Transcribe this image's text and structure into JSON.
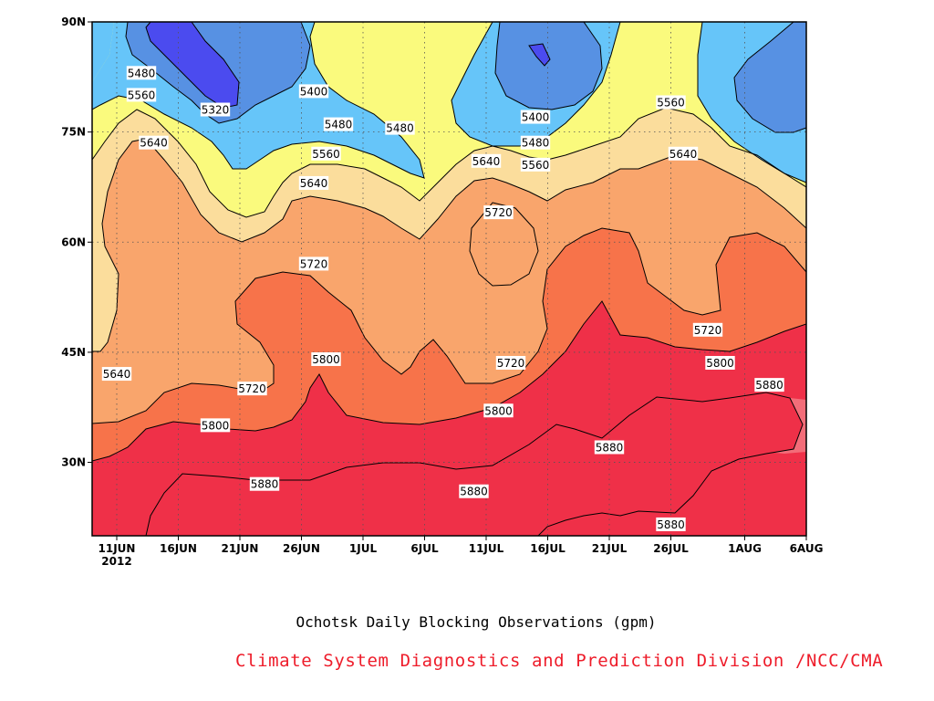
{
  "chart_data": {
    "type": "heatmap",
    "subtype": "filled contour (time-latitude Hovmoller)",
    "title": "",
    "xlabel": "Ochotsk Daily Blocking Observations (gpm)",
    "ylabel": "",
    "credit": "Climate System Diagnostics and Prediction Division /NCC/CMA",
    "x_axis": {
      "ticks": [
        "11JUN",
        "16JUN",
        "21JUN",
        "26JUN",
        "1JUL",
        "6JUL",
        "11JUL",
        "16JUL",
        "21JUL",
        "26JUL",
        "1AUG",
        "6AUG"
      ],
      "tick_values": [
        2,
        7,
        12,
        17,
        22,
        27,
        32,
        37,
        42,
        47,
        53,
        58
      ],
      "year_label": "2012",
      "range": [
        0,
        58
      ]
    },
    "y_axis": {
      "ticks": [
        "30N",
        "45N",
        "60N",
        "75N",
        "90N"
      ],
      "tick_values": [
        30,
        45,
        60,
        75,
        90
      ],
      "range": [
        20,
        90
      ]
    },
    "contour_levels": [
      5320,
      5400,
      5480,
      5560,
      5640,
      5720,
      5800,
      5880
    ],
    "fill_colors": {
      "below_5320": "#4b4bef",
      "5320_5400": "#5791e3",
      "5400_5480": "#66c5f9",
      "5480_5560": "#fafa7d",
      "5560_5640": "#fbdd9c",
      "5640_5720": "#f9a56c",
      "5720_5800": "#f7734a",
      "5800_5880": "#f36d79",
      "above_5880": "#ef3048"
    },
    "contour_labels": [
      {
        "value": "5480",
        "day": 4,
        "lat": 83
      },
      {
        "value": "5560",
        "day": 4,
        "lat": 80
      },
      {
        "value": "5640",
        "day": 5,
        "lat": 73.5
      },
      {
        "value": "5320",
        "day": 10,
        "lat": 78
      },
      {
        "value": "5400",
        "day": 18,
        "lat": 80.5
      },
      {
        "value": "5480",
        "day": 20,
        "lat": 76
      },
      {
        "value": "5480",
        "day": 25,
        "lat": 75.5
      },
      {
        "value": "5560",
        "day": 19,
        "lat": 72
      },
      {
        "value": "5640",
        "day": 18,
        "lat": 68
      },
      {
        "value": "5720",
        "day": 18,
        "lat": 57
      },
      {
        "value": "5800",
        "day": 19,
        "lat": 44
      },
      {
        "value": "5720",
        "day": 13,
        "lat": 40
      },
      {
        "value": "5640",
        "day": 2,
        "lat": 42
      },
      {
        "value": "5800",
        "day": 10,
        "lat": 35
      },
      {
        "value": "5880",
        "day": 14,
        "lat": 27
      },
      {
        "value": "5400",
        "day": 36,
        "lat": 77
      },
      {
        "value": "5480",
        "day": 36,
        "lat": 73.5
      },
      {
        "value": "5560",
        "day": 36,
        "lat": 70.5
      },
      {
        "value": "5640",
        "day": 32,
        "lat": 71
      },
      {
        "value": "5720",
        "day": 33,
        "lat": 64
      },
      {
        "value": "5720",
        "day": 34,
        "lat": 43.5
      },
      {
        "value": "5800",
        "day": 33,
        "lat": 37
      },
      {
        "value": "5880",
        "day": 31,
        "lat": 26
      },
      {
        "value": "5880",
        "day": 42,
        "lat": 32
      },
      {
        "value": "5560",
        "day": 47,
        "lat": 79
      },
      {
        "value": "5640",
        "day": 48,
        "lat": 72
      },
      {
        "value": "5720",
        "day": 50,
        "lat": 48
      },
      {
        "value": "5800",
        "day": 51,
        "lat": 43.5
      },
      {
        "value": "5880",
        "day": 55,
        "lat": 40.5
      },
      {
        "value": "5880",
        "day": 47,
        "lat": 21.5
      }
    ]
  }
}
